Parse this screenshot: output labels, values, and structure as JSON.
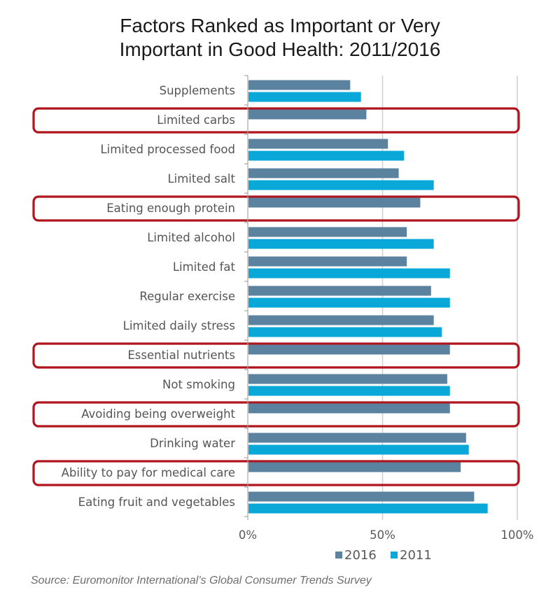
{
  "chart_data": {
    "type": "bar",
    "orientation": "horizontal",
    "title": "Factors Ranked as Important or Very Important in Good Health: 2011/2016",
    "title_lines": [
      "Factors Ranked as Important or Very",
      "Important in Good Health: 2011/2016"
    ],
    "xlabel": "",
    "ylabel": "",
    "xlim": [
      0,
      100
    ],
    "x_ticks": [
      0,
      50,
      100
    ],
    "x_tick_labels": [
      "0%",
      "50%",
      "100%"
    ],
    "grid": "vertical",
    "legend": {
      "placement": "bottom",
      "entries": [
        {
          "name": "2016",
          "color": "#5b83a0"
        },
        {
          "name": "2011",
          "color": "#0aa8d8"
        }
      ]
    },
    "categories": [
      "Supplements",
      "Limited carbs",
      "Limited processed food",
      "Limited salt",
      "Eating enough protein",
      "Limited alcohol",
      "Limited fat",
      "Regular exercise",
      "Limited daily stress",
      "Essential nutrients",
      "Not smoking",
      "Avoiding being overweight",
      "Drinking water",
      "Ability to pay for medical care",
      "Eating fruit and vegetables"
    ],
    "series": [
      {
        "name": "2016",
        "color": "#5b83a0",
        "values": [
          38,
          44,
          52,
          56,
          64,
          59,
          59,
          68,
          69,
          75,
          74,
          75,
          81,
          79,
          84
        ]
      },
      {
        "name": "2011",
        "color": "#0aa8d8",
        "values": [
          42,
          null,
          58,
          69,
          null,
          69,
          75,
          75,
          72,
          null,
          75,
          null,
          82,
          null,
          89
        ]
      }
    ],
    "highlighted_categories": [
      "Limited carbs",
      "Eating enough protein",
      "Essential nutrients",
      "Avoiding being overweight",
      "Ability to pay for medical care"
    ],
    "highlight_color": "#b0141c",
    "source": "Source: Euromonitor International’s Global Consumer Trends Survey"
  }
}
